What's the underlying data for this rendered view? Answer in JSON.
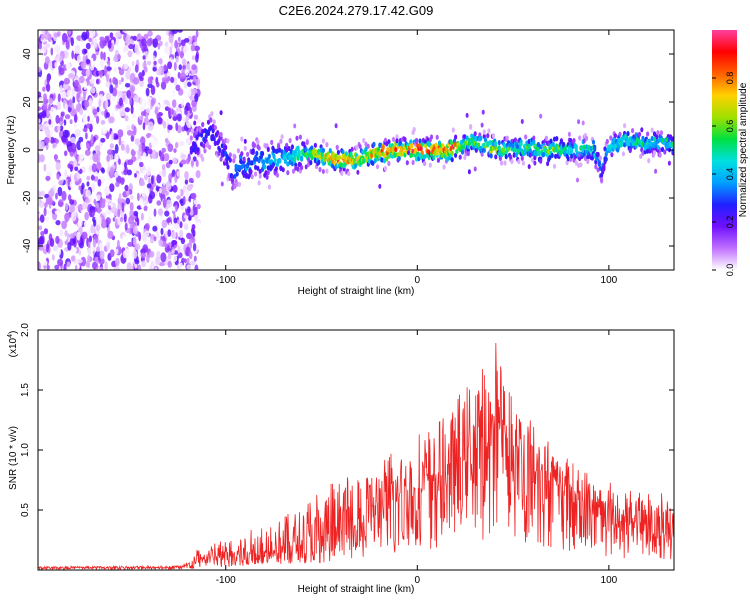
{
  "title": "C2E6.2024.279.17.42.G09",
  "chart_data": [
    {
      "type": "heatmap",
      "xlabel": "Height of straight line (km)",
      "ylabel": "Frequency (Hz)",
      "xlim": [
        -198,
        134
      ],
      "ylim": [
        -50,
        50
      ],
      "xticks": [
        -100,
        0,
        100
      ],
      "yticks": [
        -40,
        -20,
        0,
        20,
        40
      ],
      "colorbar": {
        "label": "Normalized spectral amplitude",
        "range": [
          0,
          1
        ],
        "ticks": [
          "0.0",
          "0.2",
          "0.4",
          "0.6",
          "0.8"
        ],
        "tick_values": [
          0,
          0.2,
          0.4,
          0.6,
          0.8
        ],
        "colors": [
          "#ffffff",
          "#c070ff",
          "#7010ff",
          "#2020ff",
          "#00a0ff",
          "#00e0e0",
          "#00e040",
          "#a0e000",
          "#ffd000",
          "#ff6000",
          "#ff0000",
          "#ff40a0"
        ]
      },
      "noise_x_range": [
        -198,
        -118
      ],
      "ridge": {
        "x": [
          -118,
          -112,
          -108,
          -104,
          -100,
          -96,
          -92,
          -88,
          -84,
          -80,
          -76,
          -72,
          -68,
          -64,
          -60,
          -56,
          -52,
          -48,
          -44,
          -40,
          -36,
          -32,
          -28,
          -24,
          -20,
          -16,
          -12,
          -8,
          -4,
          0,
          4,
          8,
          12,
          16,
          20,
          24,
          28,
          32,
          36,
          40,
          44,
          48,
          52,
          56,
          60,
          64,
          68,
          72,
          76,
          80,
          84,
          88,
          92,
          94,
          96,
          98,
          100,
          104,
          108,
          112,
          116,
          120,
          124,
          128,
          134
        ],
        "freq": [
          0,
          5,
          8,
          3,
          -2,
          -10,
          -5,
          -8,
          -2,
          -6,
          -4,
          -4,
          -3,
          -2,
          -1,
          -2,
          -2,
          -3,
          -4,
          -4,
          -4,
          -4,
          -3,
          -2,
          -1,
          -1,
          0,
          0,
          0,
          0,
          0,
          0,
          0,
          0,
          1,
          2,
          4,
          3,
          2,
          1,
          0,
          1,
          0,
          1,
          1,
          0,
          0,
          1,
          0,
          0,
          0,
          1,
          0,
          -4,
          -9,
          -3,
          1,
          2,
          4,
          4,
          3,
          2,
          3,
          3,
          2
        ],
        "amp": [
          0.25,
          0.3,
          0.3,
          0.25,
          0.3,
          0.3,
          0.35,
          0.35,
          0.4,
          0.4,
          0.45,
          0.45,
          0.45,
          0.55,
          0.55,
          0.6,
          0.7,
          0.75,
          0.8,
          0.85,
          0.8,
          0.75,
          0.7,
          0.75,
          0.8,
          0.85,
          0.85,
          0.9,
          0.9,
          0.92,
          0.92,
          0.9,
          0.88,
          0.88,
          0.9,
          0.6,
          0.55,
          0.6,
          0.6,
          0.7,
          0.6,
          0.55,
          0.5,
          0.55,
          0.6,
          0.55,
          0.6,
          0.6,
          0.55,
          0.5,
          0.55,
          0.5,
          0.5,
          0.4,
          0.35,
          0.4,
          0.45,
          0.5,
          0.5,
          0.5,
          0.45,
          0.5,
          0.45,
          0.45,
          0.4
        ]
      }
    },
    {
      "type": "line",
      "xlabel": "Height of straight line (km)",
      "ylabel": "SNR (10 * v/v)",
      "y_multiplier": "(x10",
      "y_multiplier_exp": "4",
      "xlim": [
        -198,
        134
      ],
      "ylim": [
        0,
        2.0
      ],
      "xticks": [
        -100,
        0,
        100
      ],
      "yticks": [
        0.5,
        1.0,
        1.5,
        2.0
      ],
      "yticklabels": [
        "0.5",
        "1.0",
        "1.5",
        "2.0"
      ],
      "color": "#ee2222",
      "envelope": {
        "x": [
          -198,
          -160,
          -125,
          -118,
          -115,
          -100,
          -80,
          -60,
          -40,
          -20,
          -10,
          0,
          10,
          20,
          30,
          38,
          42,
          46,
          50,
          60,
          70,
          80,
          90,
          100,
          110,
          120,
          134
        ],
        "mean": [
          0.02,
          0.02,
          0.02,
          0.03,
          0.08,
          0.1,
          0.14,
          0.2,
          0.3,
          0.45,
          0.55,
          0.62,
          0.72,
          0.82,
          0.95,
          1.05,
          1.1,
          1.05,
          0.95,
          0.82,
          0.72,
          0.62,
          0.52,
          0.45,
          0.38,
          0.35,
          0.32
        ],
        "peak": [
          0.03,
          0.03,
          0.04,
          0.08,
          0.18,
          0.25,
          0.38,
          0.55,
          0.75,
          0.9,
          1.0,
          1.1,
          1.2,
          1.4,
          1.6,
          1.7,
          1.95,
          1.7,
          1.5,
          1.25,
          1.05,
          0.9,
          0.8,
          0.72,
          0.68,
          0.65,
          0.62
        ]
      },
      "sample_step_km": 0.25
    }
  ]
}
